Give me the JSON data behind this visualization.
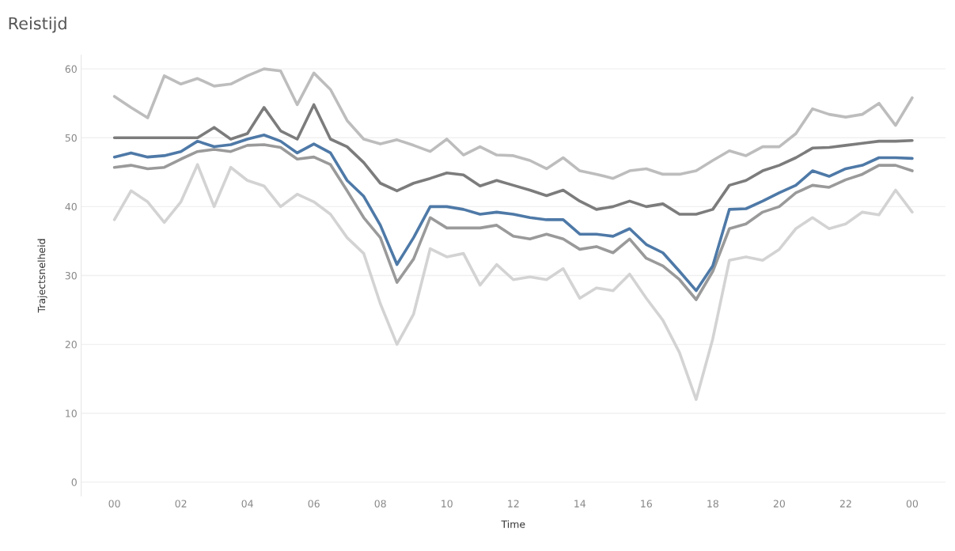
{
  "chart_data": {
    "type": "line",
    "title": "Reistijd",
    "xlabel": "Time",
    "ylabel": "Trajectsnelheid",
    "x": [
      0,
      0.5,
      1,
      1.5,
      2,
      2.5,
      3,
      3.5,
      4,
      4.5,
      5,
      5.5,
      6,
      6.5,
      7,
      7.5,
      8,
      8.5,
      9,
      9.5,
      10,
      10.5,
      11,
      11.5,
      12,
      12.5,
      13,
      13.5,
      14,
      14.5,
      15,
      15.5,
      16,
      16.5,
      17,
      17.5,
      18,
      18.5,
      19,
      19.5,
      20,
      20.5,
      21,
      21.5,
      22,
      22.5,
      23,
      23.5,
      24
    ],
    "series": [
      {
        "color": "#bdbdbd",
        "values": [
          56,
          54.4,
          52.9,
          59,
          57.8,
          58.6,
          57.5,
          57.8,
          59,
          60,
          59.7,
          54.8,
          59.4,
          57,
          52.5,
          49.8,
          49.1,
          49.7,
          48.9,
          48,
          49.8,
          47.5,
          48.7,
          47.5,
          47.4,
          46.7,
          45.5,
          47.1,
          45.2,
          44.7,
          44.1,
          45.2,
          45.5,
          44.7,
          44.7,
          45.2,
          46.7,
          48.1,
          47.4,
          48.7,
          48.7,
          50.6,
          54.2,
          53.4,
          53,
          53.4,
          55,
          51.8,
          55.8
        ]
      },
      {
        "color": "#d3d3d3",
        "values": [
          38.1,
          42.3,
          40.7,
          37.7,
          40.7,
          46.1,
          40,
          45.7,
          43.8,
          43,
          40,
          41.8,
          40.7,
          38.9,
          35.5,
          33.2,
          25.9,
          20,
          24.4,
          33.9,
          32.7,
          33.2,
          28.6,
          31.6,
          29.4,
          29.8,
          29.4,
          31,
          26.7,
          28.2,
          27.8,
          30.2,
          26.7,
          23.5,
          18.8,
          12,
          20.8,
          32.2,
          32.7,
          32.2,
          33.8,
          36.8,
          38.4,
          36.8,
          37.5,
          39.2,
          38.8,
          42.4,
          39.2
        ]
      },
      {
        "color": "#9a9a9a",
        "values": [
          45.7,
          46,
          45.5,
          45.7,
          46.9,
          48,
          48.3,
          48,
          48.9,
          49,
          48.6,
          46.9,
          47.2,
          46.1,
          42.3,
          38.4,
          35.5,
          29,
          32.4,
          38.4,
          36.9,
          36.9,
          36.9,
          37.3,
          35.7,
          35.3,
          36,
          35.3,
          33.8,
          34.2,
          33.3,
          35.3,
          32.5,
          31.4,
          29.4,
          26.5,
          30.6,
          36.8,
          37.5,
          39.2,
          40,
          42,
          43.1,
          42.8,
          43.9,
          44.7,
          46,
          46,
          45.2
        ]
      },
      {
        "color": "#7c7c7c",
        "values": [
          50,
          50,
          50,
          50,
          50,
          50,
          51.5,
          49.8,
          50.6,
          54.4,
          51,
          49.8,
          54.8,
          49.8,
          48.7,
          46.4,
          43.4,
          42.3,
          43.4,
          44.1,
          44.9,
          44.6,
          43,
          43.8,
          43.1,
          42.4,
          41.6,
          42.4,
          40.8,
          39.6,
          40,
          40.8,
          40,
          40.4,
          38.9,
          38.9,
          39.6,
          43.1,
          43.8,
          45.2,
          46,
          47.1,
          48.5,
          48.6,
          48.9,
          49.2,
          49.5,
          49.5,
          49.6
        ]
      },
      {
        "color": "#4e79a7",
        "values": [
          47.2,
          47.8,
          47.2,
          47.4,
          48,
          49.5,
          48.7,
          49,
          49.8,
          50.4,
          49.5,
          47.8,
          49.1,
          47.8,
          43.8,
          41.5,
          37.3,
          31.6,
          35.5,
          40,
          40,
          39.6,
          38.9,
          39.2,
          38.9,
          38.4,
          38.1,
          38.1,
          36,
          36,
          35.7,
          36.8,
          34.5,
          33.3,
          30.6,
          27.8,
          31.4,
          39.6,
          39.7,
          40.8,
          42,
          43.1,
          45.2,
          44.4,
          45.5,
          46,
          47.1,
          47.1,
          47
        ]
      }
    ],
    "xlim": [
      -1,
      25
    ],
    "xticks": [
      {
        "value": 0,
        "label": "00"
      },
      {
        "value": 2,
        "label": "02"
      },
      {
        "value": 4,
        "label": "04"
      },
      {
        "value": 6,
        "label": "06"
      },
      {
        "value": 8,
        "label": "08"
      },
      {
        "value": 10,
        "label": "10"
      },
      {
        "value": 12,
        "label": "12"
      },
      {
        "value": 14,
        "label": "14"
      },
      {
        "value": 16,
        "label": "16"
      },
      {
        "value": 18,
        "label": "18"
      },
      {
        "value": 20,
        "label": "20"
      },
      {
        "value": 22,
        "label": "22"
      },
      {
        "value": 24,
        "label": "00"
      }
    ],
    "ylim": [
      -2,
      62
    ],
    "yticks": [
      0,
      10,
      20,
      30,
      40,
      50,
      60
    ],
    "grid": "y",
    "line_style": "solid"
  }
}
